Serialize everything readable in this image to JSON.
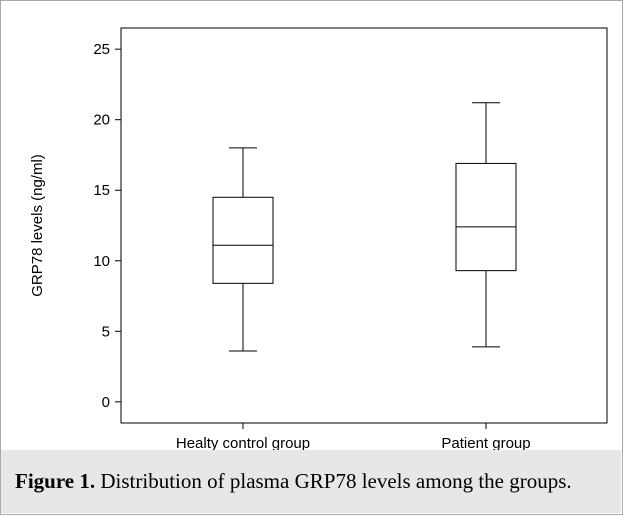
{
  "chart_data": {
    "type": "box",
    "ylabel": "GRP78 levels (ng/ml)",
    "xlabel": "",
    "ylim": [
      -1.5,
      26.5
    ],
    "yticks": [
      0,
      5,
      10,
      15,
      20,
      25
    ],
    "grid": false,
    "categories": [
      "Healty control group",
      "Patient group"
    ],
    "boxes": [
      {
        "category": "Healty control group",
        "min": 3.6,
        "q1": 8.4,
        "median": 11.1,
        "q3": 14.5,
        "max": 18.0
      },
      {
        "category": "Patient group",
        "min": 3.9,
        "q1": 9.3,
        "median": 12.4,
        "q3": 16.9,
        "max": 21.2
      }
    ]
  },
  "caption": {
    "label": "Figure 1.",
    "text": " Distribution of plasma GRP78 levels among the groups."
  }
}
